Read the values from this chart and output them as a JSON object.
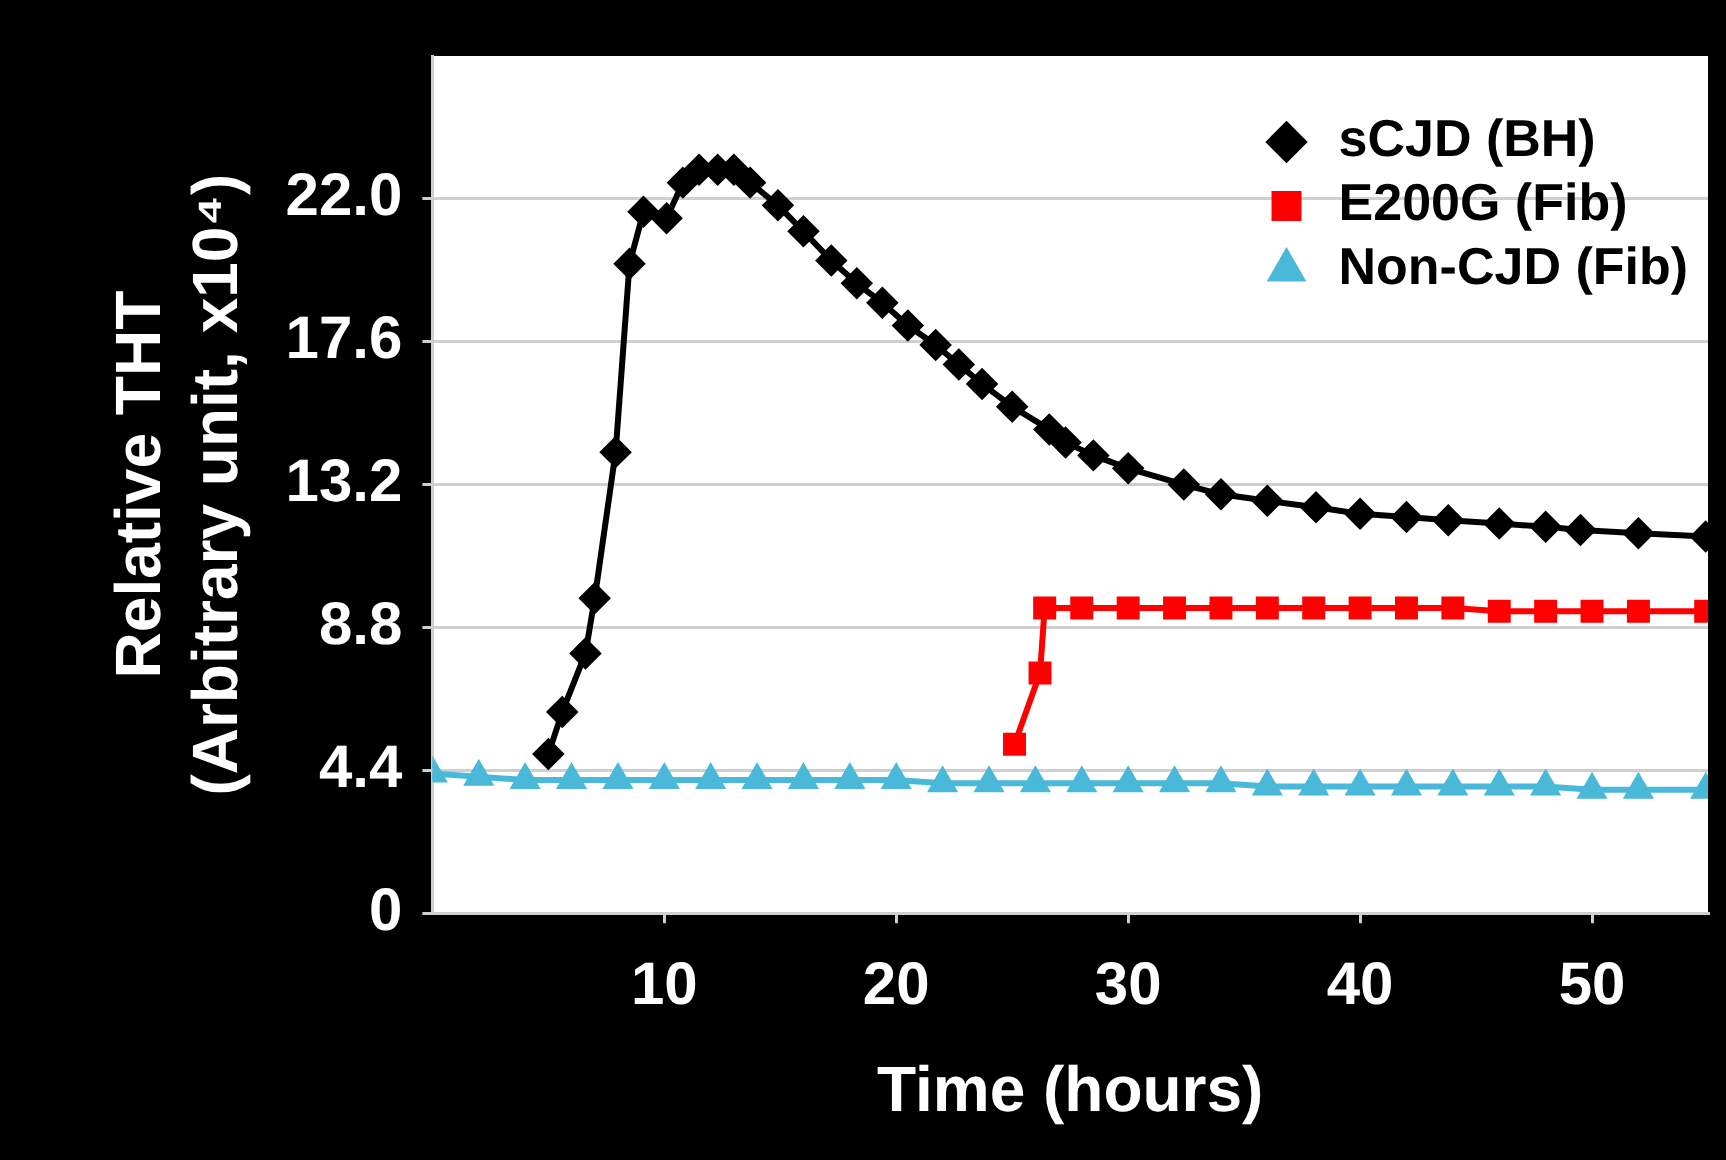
{
  "chart_data": {
    "type": "line",
    "xlabel": "Time (hours)",
    "ylabel": [
      "Relative THT",
      "(Arbitrary unit, x10⁴)"
    ],
    "xlim": [
      0,
      55
    ],
    "xticks": [
      10,
      20,
      30,
      40,
      50
    ],
    "ylim": [
      0,
      26.4
    ],
    "yticks": [
      0,
      4.4,
      8.8,
      13.2,
      17.6,
      {
        "value": 22,
        "label": "22.0"
      }
    ],
    "grid": "y",
    "legend": "top right",
    "line_style": "solid",
    "series": [
      {
        "name": "sCJD (BH)",
        "color": "#000000",
        "marker": "diamond",
        "x": [
          5.0,
          5.6,
          6.6,
          7.0,
          7.9,
          8.5,
          9.1,
          10.1,
          10.8,
          11.5,
          12.3,
          13.0,
          13.7,
          14.9,
          16.0,
          17.2,
          18.3,
          19.4,
          20.5,
          21.7,
          22.7,
          23.7,
          25.0,
          26.6,
          27.3,
          28.5,
          30.0,
          32.4,
          34.0,
          36.0,
          38.1,
          40.0,
          42.0,
          43.8,
          46.0,
          48.0,
          49.5,
          52.0,
          54.9
        ],
        "values": [
          4.9,
          6.2,
          8.0,
          9.7,
          14.2,
          20.0,
          21.6,
          21.4,
          22.5,
          22.9,
          22.9,
          22.9,
          22.5,
          21.8,
          21.0,
          20.1,
          19.4,
          18.8,
          18.1,
          17.5,
          16.9,
          16.3,
          15.6,
          14.9,
          14.5,
          14.1,
          13.7,
          13.2,
          12.9,
          12.7,
          12.5,
          12.3,
          12.2,
          12.1,
          12.0,
          11.9,
          11.8,
          11.7,
          11.6
        ]
      },
      {
        "name": "E200G (Fib)",
        "color": "#ff0000",
        "marker": "square",
        "x": [
          25.1,
          26.2,
          26.4,
          28,
          30,
          32,
          34,
          36,
          38,
          40,
          42,
          44,
          46,
          48,
          50,
          52,
          54.9
        ],
        "values": [
          5.2,
          7.4,
          9.4,
          9.4,
          9.4,
          9.4,
          9.4,
          9.4,
          9.4,
          9.4,
          9.4,
          9.4,
          9.3,
          9.3,
          9.3,
          9.3,
          9.3
        ]
      },
      {
        "name": "Non-CJD (Fib)",
        "color": "#4ab8d8",
        "marker": "triangle",
        "x": [
          0,
          2,
          4,
          6,
          8,
          10,
          12,
          14,
          16,
          18,
          20,
          22,
          24,
          26,
          28,
          30,
          32,
          34,
          36,
          38,
          40,
          42,
          44,
          46,
          48,
          50,
          52,
          54.9
        ],
        "values": [
          4.3,
          4.2,
          4.1,
          4.1,
          4.1,
          4.1,
          4.1,
          4.1,
          4.1,
          4.1,
          4.1,
          4.0,
          4.0,
          4.0,
          4.0,
          4.0,
          4.0,
          4.0,
          3.9,
          3.9,
          3.9,
          3.9,
          3.9,
          3.9,
          3.9,
          3.8,
          3.8,
          3.8
        ]
      }
    ]
  }
}
